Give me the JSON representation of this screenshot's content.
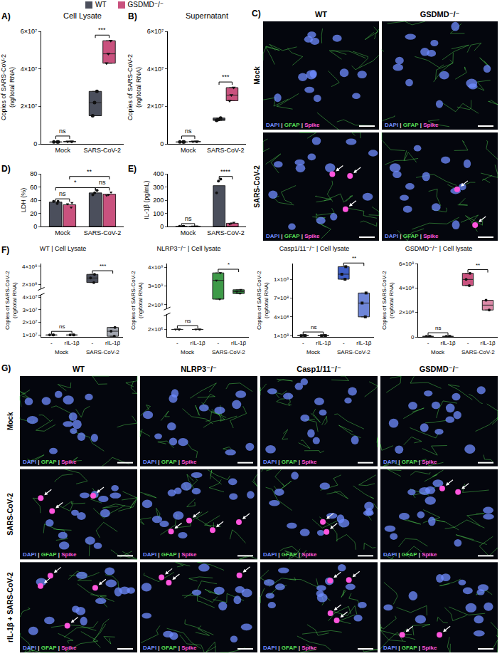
{
  "chart_data": [
    {
      "panel": "A)",
      "type": "box",
      "title": "Cell Lysate",
      "y_title": "Copies of SARS-CoV-2 (ng/total RNA)",
      "categories": [
        "Mock",
        "SARS-CoV-2"
      ],
      "legend": "top",
      "ylim": [
        0,
        60000000
      ],
      "yticks": [
        0,
        {
          "value": 20000000,
          "label": "2×10⁷"
        },
        {
          "value": 40000000,
          "label": "4×10⁷"
        },
        {
          "value": 60000000,
          "label": "6×10⁷"
        }
      ],
      "series": [
        {
          "name": "WT",
          "color": "#4b4f5c",
          "marker": "circle",
          "values": [
            [
              1000000,
              1000000,
              1000000
            ],
            [
              15000000,
              22000000,
              28000000
            ]
          ]
        },
        {
          "name": "GSDMD⁻/⁻",
          "color": "#c9527e",
          "marker": "triangle-down",
          "values": [
            [
              1200000,
              1200000,
              1200000
            ],
            [
              43000000,
              48000000,
              55000000
            ]
          ]
        }
      ],
      "comparisons": [
        {
          "label": "ns",
          "from": [
            "Mock",
            "WT"
          ],
          "to": [
            "Mock",
            "GSDMD⁻/⁻"
          ]
        },
        {
          "label": "***",
          "from": [
            "SARS-CoV-2",
            "WT"
          ],
          "to": [
            "SARS-CoV-2",
            "GSDMD⁻/⁻"
          ]
        }
      ]
    },
    {
      "panel": "B)",
      "type": "box",
      "title": "Supernatant",
      "y_title": "Copies of SARS-CoV-2 (ng/total RNA)",
      "categories": [
        "Mock",
        "SARS-CoV-2"
      ],
      "ylim": [
        0,
        60000000
      ],
      "yticks": [
        0,
        {
          "value": 20000000,
          "label": "2×10⁷"
        },
        {
          "value": 40000000,
          "label": "4×10⁷"
        },
        {
          "value": 60000000,
          "label": "6×10⁷"
        }
      ],
      "series": [
        {
          "name": "WT",
          "color": "#4b4f5c",
          "marker": "circle",
          "values": [
            [
              1000000,
              1000000,
              1000000
            ],
            [
              12500000,
              13000000,
              13800000
            ]
          ]
        },
        {
          "name": "GSDMD⁻/⁻",
          "color": "#c9527e",
          "marker": "triangle-down",
          "values": [
            [
              1200000,
              1200000,
              1200000
            ],
            [
              23000000,
              26000000,
              30000000
            ]
          ]
        }
      ],
      "comparisons": [
        {
          "label": "ns",
          "from": [
            "Mock",
            "WT"
          ],
          "to": [
            "Mock",
            "GSDMD⁻/⁻"
          ]
        },
        {
          "label": "***",
          "from": [
            "SARS-CoV-2",
            "WT"
          ],
          "to": [
            "SARS-CoV-2",
            "GSDMD⁻/⁻"
          ]
        }
      ]
    },
    {
      "panel": "D)",
      "type": "bar",
      "y_title": "LDH (%)",
      "categories": [
        "Mock",
        "SARS-CoV-2"
      ],
      "ylim": [
        0,
        80
      ],
      "yticks": [
        0,
        20,
        40,
        60,
        80
      ],
      "series": [
        {
          "name": "WT",
          "color": "#4b4f5c",
          "marker": "circle",
          "values": [
            37,
            51
          ],
          "points": [
            [
              38,
              35,
              38
            ],
            [
              48,
              55,
              51
            ]
          ]
        },
        {
          "name": "GSDMD⁻/⁻",
          "color": "#c9527e",
          "marker": "triangle-down",
          "values": [
            33,
            49
          ],
          "points": [
            [
              29,
              34,
              36
            ],
            [
              47,
              52,
              48
            ]
          ]
        }
      ],
      "comparisons": [
        {
          "label": "ns",
          "from": [
            "Mock",
            "WT"
          ],
          "to": [
            "Mock",
            "GSDMD⁻/⁻"
          ]
        },
        {
          "label": "ns",
          "from": [
            "SARS-CoV-2",
            "WT"
          ],
          "to": [
            "SARS-CoV-2",
            "GSDMD⁻/⁻"
          ]
        },
        {
          "label": "*",
          "from": [
            "Mock",
            "WT"
          ],
          "to": [
            "SARS-CoV-2",
            "WT"
          ]
        },
        {
          "label": "**",
          "from": [
            "Mock",
            "GSDMD⁻/⁻"
          ],
          "to": [
            "SARS-CoV-2",
            "GSDMD⁻/⁻"
          ]
        }
      ]
    },
    {
      "panel": "E)",
      "type": "bar",
      "y_title": "IL-1β (pg/mL)",
      "categories": [
        "Mock",
        "SARS-CoV-2"
      ],
      "ylim": [
        0,
        400
      ],
      "yticks": [
        0,
        100,
        200,
        300,
        400
      ],
      "series": [
        {
          "name": "WT",
          "color": "#4b4f5c",
          "marker": "circle",
          "values": [
            0,
            310
          ],
          "points": [
            [
              2,
              2,
              2
            ],
            [
              255,
              345,
              360
            ]
          ]
        },
        {
          "name": "GSDMD⁻/⁻",
          "color": "#c9527e",
          "marker": "triangle-down",
          "values": [
            0,
            25
          ],
          "points": [
            [
              2,
              2,
              2
            ],
            [
              18,
              30,
              25
            ]
          ]
        }
      ],
      "comparisons": [
        {
          "label": "ns",
          "from": [
            "Mock",
            "WT"
          ],
          "to": [
            "Mock",
            "GSDMD⁻/⁻"
          ]
        },
        {
          "label": "****",
          "from": [
            "SARS-CoV-2",
            "WT"
          ],
          "to": [
            "SARS-CoV-2",
            "GSDMD⁻/⁻"
          ]
        }
      ]
    },
    {
      "panel": "F)",
      "type": "box",
      "title": "WT | Cell Lysate",
      "y_title": "Copies of SARS-CoV-2 (ng/total RNA)",
      "categories": [
        "-",
        "rIL-1β",
        "-",
        "rIL-1β"
      ],
      "groups": [
        "Mock",
        "Mock",
        "SARS-CoV-2",
        "SARS-CoV-2"
      ],
      "colors": [
        "#4b4f5c",
        "#4b4f5c",
        "#4b4f5c",
        "#a3a7b0"
      ],
      "marker": "circle",
      "values": [
        [
          10000000,
          10000000,
          10000000
        ],
        [
          10000000,
          10000000,
          10000000
        ],
        [
          220000000,
          270000000,
          310000000
        ],
        [
          9000000,
          13000000,
          16000000
        ]
      ],
      "y_segments": [
        {
          "ylim": [
            8500000,
            42000000
          ],
          "yticks": [
            {
              "value": 10000000,
              "label": "1×10⁷"
            },
            {
              "value": 20000000,
              "label": "2×10⁷"
            },
            {
              "value": 30000000,
              "label": "3×10⁷"
            },
            {
              "value": 40000000,
              "label": "4×10⁷"
            }
          ]
        },
        {
          "ylim": [
            150000000,
            430000000
          ],
          "yticks": [
            {
              "value": 200000000,
              "label": "2×10⁸"
            },
            {
              "value": 400000000,
              "label": "4×10⁸"
            }
          ]
        }
      ],
      "comparisons": [
        {
          "label": "ns",
          "from": [
            "Mock",
            "-"
          ],
          "to": [
            "Mock",
            "rIL-1β"
          ]
        },
        {
          "label": "***",
          "from": [
            "SARS-CoV-2",
            "-"
          ],
          "to": [
            "SARS-CoV-2",
            "rIL-1β"
          ]
        }
      ]
    },
    {
      "type": "box",
      "title": "NLRP3⁻/⁻ | Cell lysate",
      "y_title": "Copies of SARS-CoV-2 (ng/total RNA)",
      "categories": [
        "-",
        "rIL-1β",
        "-",
        "rIL-1β"
      ],
      "groups": [
        "Mock",
        "Mock",
        "SARS-CoV-2",
        "SARS-CoV-2"
      ],
      "colors": [
        "#3e9a48",
        "#3e9a48",
        "#3e9a48",
        "#2f7d3a"
      ],
      "marker": "triangle-down",
      "values": [
        [
          2000000,
          2000000,
          2000000
        ],
        [
          2000000,
          2000000,
          2000000
        ],
        [
          2300000000,
          3300000000,
          3700000000
        ],
        [
          2600000000,
          2700000000,
          2800000000
        ]
      ],
      "y_segments": [
        {
          "ylim": [
            1700000,
            2600000
          ],
          "yticks": [
            {
              "value": 2000000,
              "label": "2×10⁶"
            }
          ]
        },
        {
          "ylim": [
            1800000000,
            4200000000
          ],
          "yticks": [
            {
              "value": 2000000000,
              "label": "2×10⁹"
            },
            {
              "value": 3000000000,
              "label": "3×10⁹"
            },
            {
              "value": 4000000000,
              "label": "4×10⁹"
            }
          ]
        }
      ],
      "comparisons": [
        {
          "label": "ns",
          "from": [
            "Mock",
            "-"
          ],
          "to": [
            "Mock",
            "rIL-1β"
          ]
        },
        {
          "label": "*",
          "from": [
            "SARS-CoV-2",
            "-"
          ],
          "to": [
            "SARS-CoV-2",
            "rIL-1β"
          ]
        }
      ]
    },
    {
      "type": "box",
      "title": "Casp1/11⁻/⁻ | Cell lysate",
      "y_title": "Copies of SARS-CoV-2 (ng/total RNA)",
      "categories": [
        "-",
        "rIL-1β",
        "-",
        "rIL-1β"
      ],
      "groups": [
        "Mock",
        "Mock",
        "SARS-CoV-2",
        "SARS-CoV-2"
      ],
      "colors": [
        "#3f5fc6",
        "#3f5fc6",
        "#3f5fc6",
        "#6f86d8"
      ],
      "marker": "square",
      "values": [
        [
          100000000,
          100000000,
          100000000
        ],
        [
          100000000,
          100000000,
          100000000
        ],
        [
          1000000000,
          1080000000,
          1200000000
        ],
        [
          400000000,
          620000000,
          780000000
        ]
      ],
      "ylim": [
        80000000,
        1250000000
      ],
      "yticks": [
        {
          "value": 100000000,
          "label": "1×10⁸"
        },
        {
          "value": 400000000,
          "label": "4×10⁸"
        },
        {
          "value": 700000000,
          "label": "7×10⁸"
        },
        {
          "value": 1000000000,
          "label": "1×10⁹"
        }
      ],
      "comparisons": [
        {
          "label": "ns",
          "from": [
            "Mock",
            "-"
          ],
          "to": [
            "Mock",
            "rIL-1β"
          ]
        },
        {
          "label": "**",
          "from": [
            "SARS-CoV-2",
            "-"
          ],
          "to": [
            "SARS-CoV-2",
            "rIL-1β"
          ]
        }
      ]
    },
    {
      "type": "box",
      "title": "GSDMD⁻/⁻ | Cell lysate",
      "y_title": "Copies of SARS-CoV-2 (ng/total RNA)",
      "categories": [
        "-",
        "rIL-1β",
        "-",
        "rIL-1β"
      ],
      "groups": [
        "Mock",
        "Mock",
        "SARS-CoV-2",
        "SARS-CoV-2"
      ],
      "colors": [
        "#c9527e",
        "#c9527e",
        "#c9527e",
        "#dc8aa8"
      ],
      "marker": "circle",
      "values": [
        [
          4000000,
          4000000,
          4000000
        ],
        [
          4000000,
          4000000,
          4000000
        ],
        [
          420000000,
          470000000,
          520000000
        ],
        [
          220000000,
          300000000
        ]
      ],
      "ylim": [
        0,
        600000000
      ],
      "yticks": [
        0,
        {
          "value": 200000000,
          "label": "2×10⁸"
        },
        {
          "value": 400000000,
          "label": "4×10⁸"
        },
        {
          "value": 600000000,
          "label": "6×10⁸"
        }
      ],
      "comparisons": [
        {
          "label": "ns",
          "from": [
            "Mock",
            "-"
          ],
          "to": [
            "Mock",
            "rIL-1β"
          ]
        },
        {
          "label": "**",
          "from": [
            "SARS-CoV-2",
            "-"
          ],
          "to": [
            "SARS-CoV-2",
            "rIL-1β"
          ]
        }
      ]
    }
  ],
  "micrographs": [
    {
      "panel": "C)",
      "columns": [
        "WT",
        "GSDMD⁻/⁻"
      ],
      "rows": [
        "Mock",
        "SARS-CoV-2"
      ],
      "channels": [
        {
          "name": "DAPI",
          "color": "#6f8cff"
        },
        {
          "name": "GFAP",
          "color": "#55dd55"
        },
        {
          "name": "Spike",
          "color": "#ff55dd"
        }
      ],
      "separator": "|"
    },
    {
      "panel": "G)",
      "columns": [
        "WT",
        "NLRP3⁻/⁻",
        "Casp1/11⁻/⁻",
        "GSDMD⁻/⁻"
      ],
      "rows": [
        "Mock",
        "SARS-CoV-2",
        "rIL-1β + SARS-CoV-2"
      ],
      "channels": [
        {
          "name": "DAPI",
          "color": "#6f8cff"
        },
        {
          "name": "GFAP",
          "color": "#55dd55"
        },
        {
          "name": "Spike",
          "color": "#ff55dd"
        }
      ],
      "separator": "|"
    }
  ]
}
